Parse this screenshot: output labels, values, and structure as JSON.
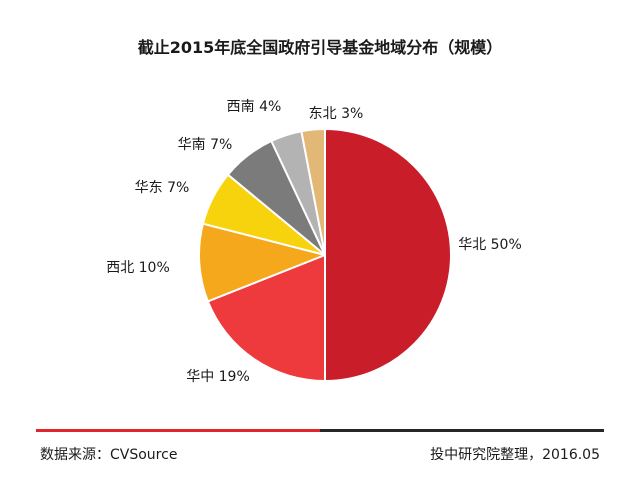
{
  "chart_data": {
    "type": "pie",
    "title": "截止2015年底全国政府引导基金地域分布（规模）",
    "slices": [
      {
        "label": "华北",
        "value": 50,
        "display": "华北 50%",
        "color": "#c91e29"
      },
      {
        "label": "华中",
        "value": 19,
        "display": "华中 19%",
        "color": "#ee3a3d"
      },
      {
        "label": "西北",
        "value": 10,
        "display": "西北 10%",
        "color": "#f5a81c"
      },
      {
        "label": "华东",
        "value": 7,
        "display": "华东 7%",
        "color": "#f7d30e"
      },
      {
        "label": "华南",
        "value": 7,
        "display": "华南 7%",
        "color": "#7b7b7b"
      },
      {
        "label": "西南",
        "value": 4,
        "display": "西南 4%",
        "color": "#b3b3b3"
      },
      {
        "label": "东北",
        "value": 3,
        "display": "东北 3%",
        "color": "#e3b877"
      }
    ]
  },
  "footer": {
    "source": "数据来源：CVSource",
    "credit": "投中研究院整理，2016.05"
  }
}
